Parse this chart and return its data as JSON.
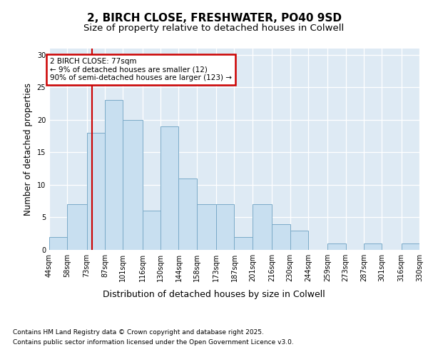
{
  "title_line1": "2, BIRCH CLOSE, FRESHWATER, PO40 9SD",
  "title_line2": "Size of property relative to detached houses in Colwell",
  "xlabel": "Distribution of detached houses by size in Colwell",
  "ylabel": "Number of detached properties",
  "bar_values": [
    2,
    7,
    18,
    23,
    20,
    6,
    19,
    11,
    7,
    7,
    2,
    7,
    4,
    3,
    0,
    1,
    0,
    1,
    0,
    1
  ],
  "bar_labels": [
    "44sqm",
    "58sqm",
    "73sqm",
    "87sqm",
    "101sqm",
    "116sqm",
    "130sqm",
    "144sqm",
    "158sqm",
    "173sqm",
    "187sqm",
    "201sqm",
    "216sqm",
    "230sqm",
    "244sqm",
    "259sqm",
    "273sqm",
    "287sqm",
    "301sqm",
    "316sqm",
    "330sqm"
  ],
  "bar_color": "#c8dff0",
  "bar_edge_color": "#7aaac8",
  "fig_bg_color": "#ffffff",
  "plot_bg_color": "#deeaf4",
  "vline_x": 77,
  "vline_color": "#cc0000",
  "annotation_text": "2 BIRCH CLOSE: 77sqm\n← 9% of detached houses are smaller (12)\n90% of semi-detached houses are larger (123) →",
  "annotation_box_facecolor": "#ffffff",
  "annotation_box_edgecolor": "#cc0000",
  "footer_line1": "Contains HM Land Registry data © Crown copyright and database right 2025.",
  "footer_line2": "Contains public sector information licensed under the Open Government Licence v3.0.",
  "ylim": [
    0,
    31
  ],
  "yticks": [
    0,
    5,
    10,
    15,
    20,
    25,
    30
  ],
  "bin_edges": [
    44,
    58,
    73,
    87,
    101,
    116,
    130,
    144,
    158,
    173,
    187,
    201,
    216,
    230,
    244,
    259,
    273,
    287,
    301,
    316,
    330
  ],
  "title_fontsize": 11,
  "subtitle_fontsize": 9.5,
  "ylabel_fontsize": 8.5,
  "xlabel_fontsize": 9,
  "tick_fontsize": 7,
  "annotation_fontsize": 7.5,
  "footer_fontsize": 6.5
}
